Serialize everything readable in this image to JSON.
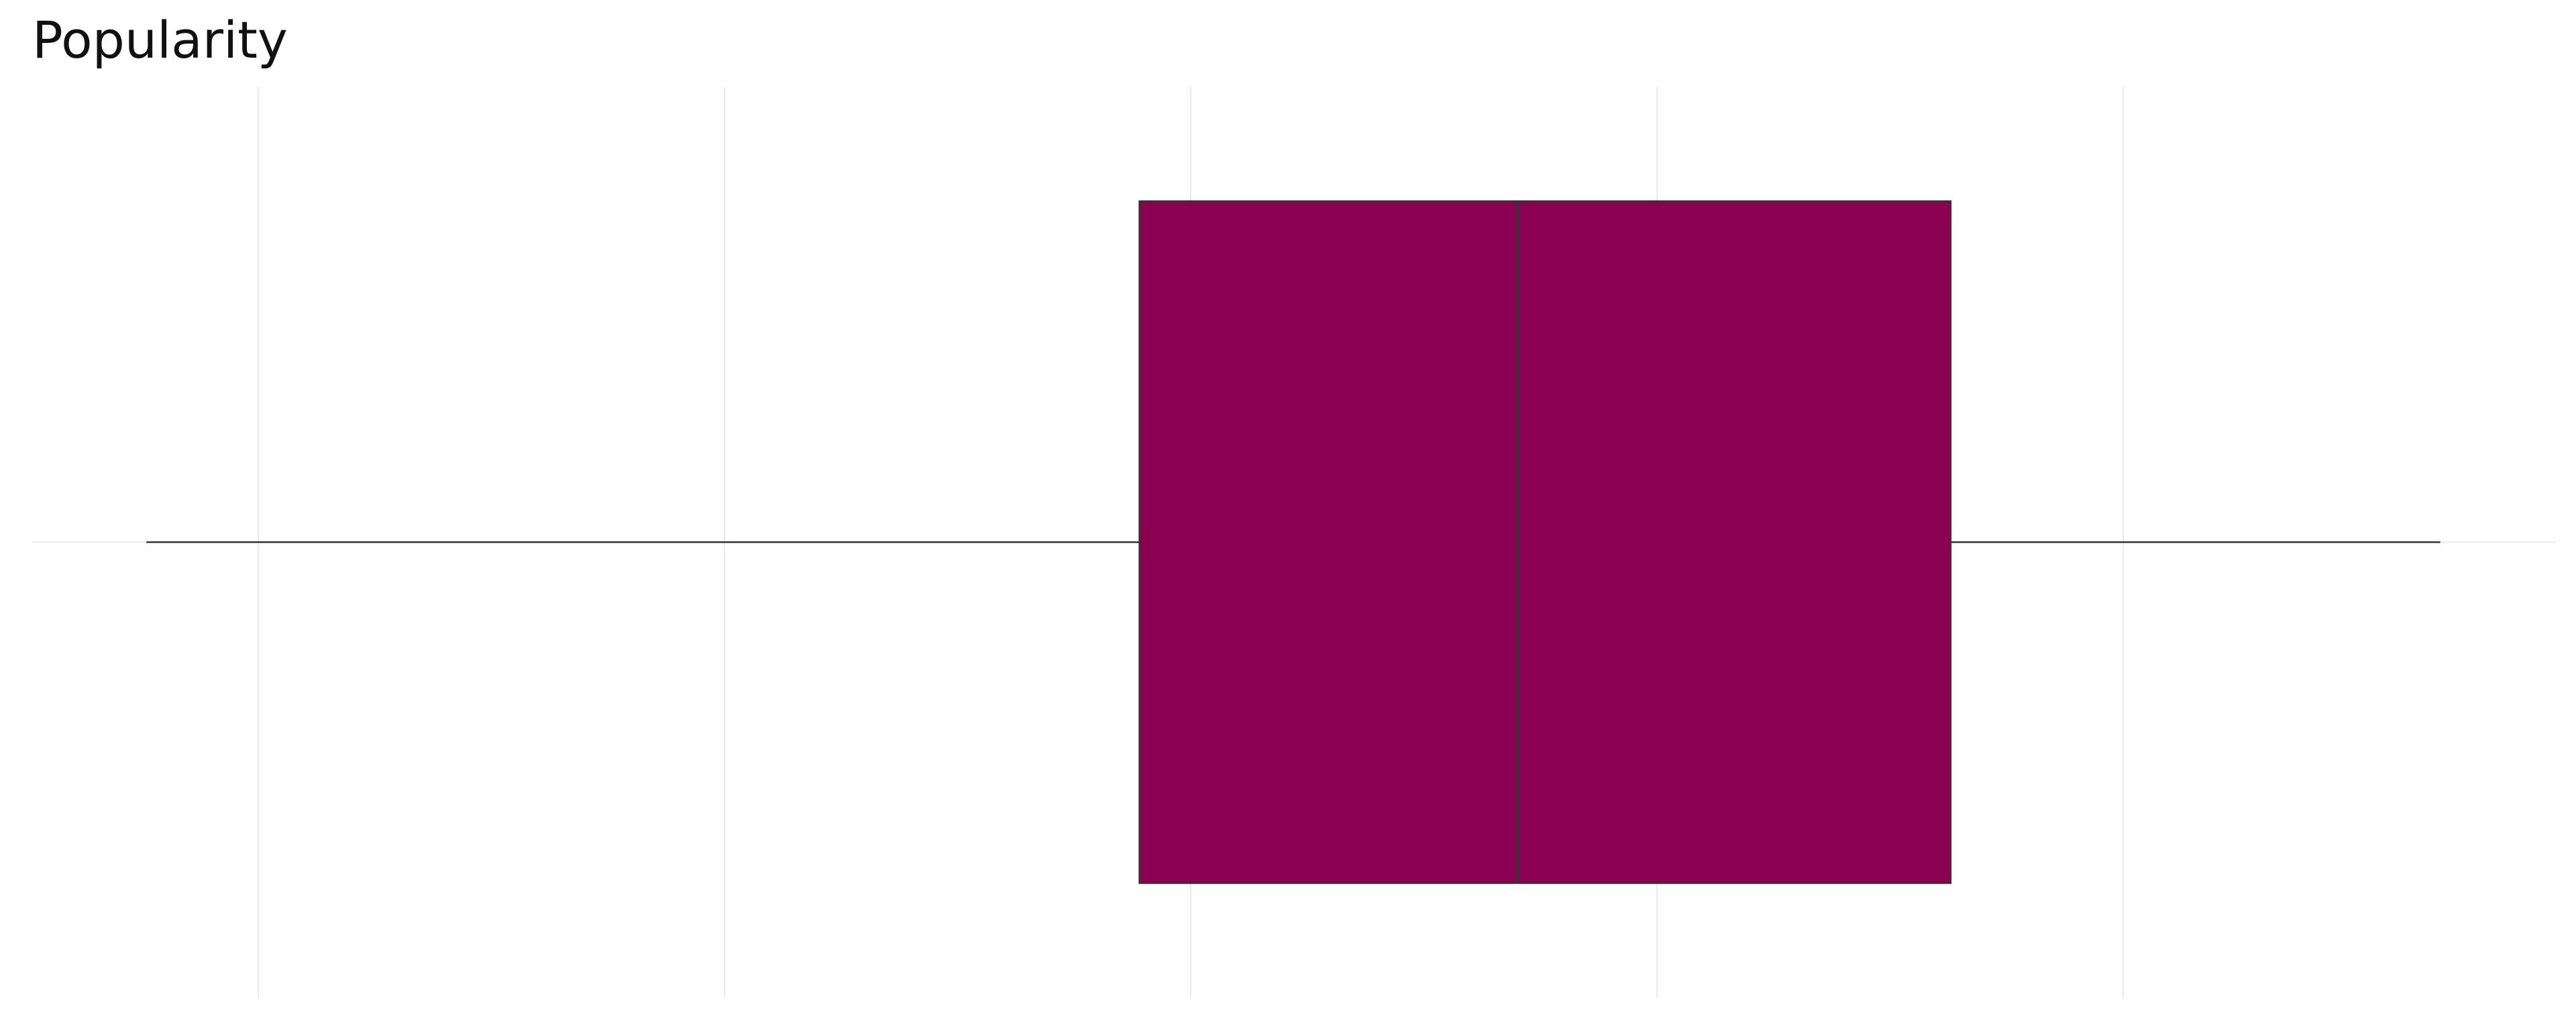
{
  "chart_data": {
    "type": "boxplot",
    "title": "Popularity",
    "orientation": "horizontal",
    "xlim": [
      -0.25,
      5.2
    ],
    "gridlines_x": [
      0,
      1,
      2,
      3,
      4
    ],
    "grid": true,
    "tick_labels_shown": false,
    "box": {
      "min": -0.24,
      "q1": 1.89,
      "median": 2.7,
      "q3": 3.63,
      "max": 4.68
    },
    "fill_color": "#8b0050",
    "line_color": "#333333"
  }
}
